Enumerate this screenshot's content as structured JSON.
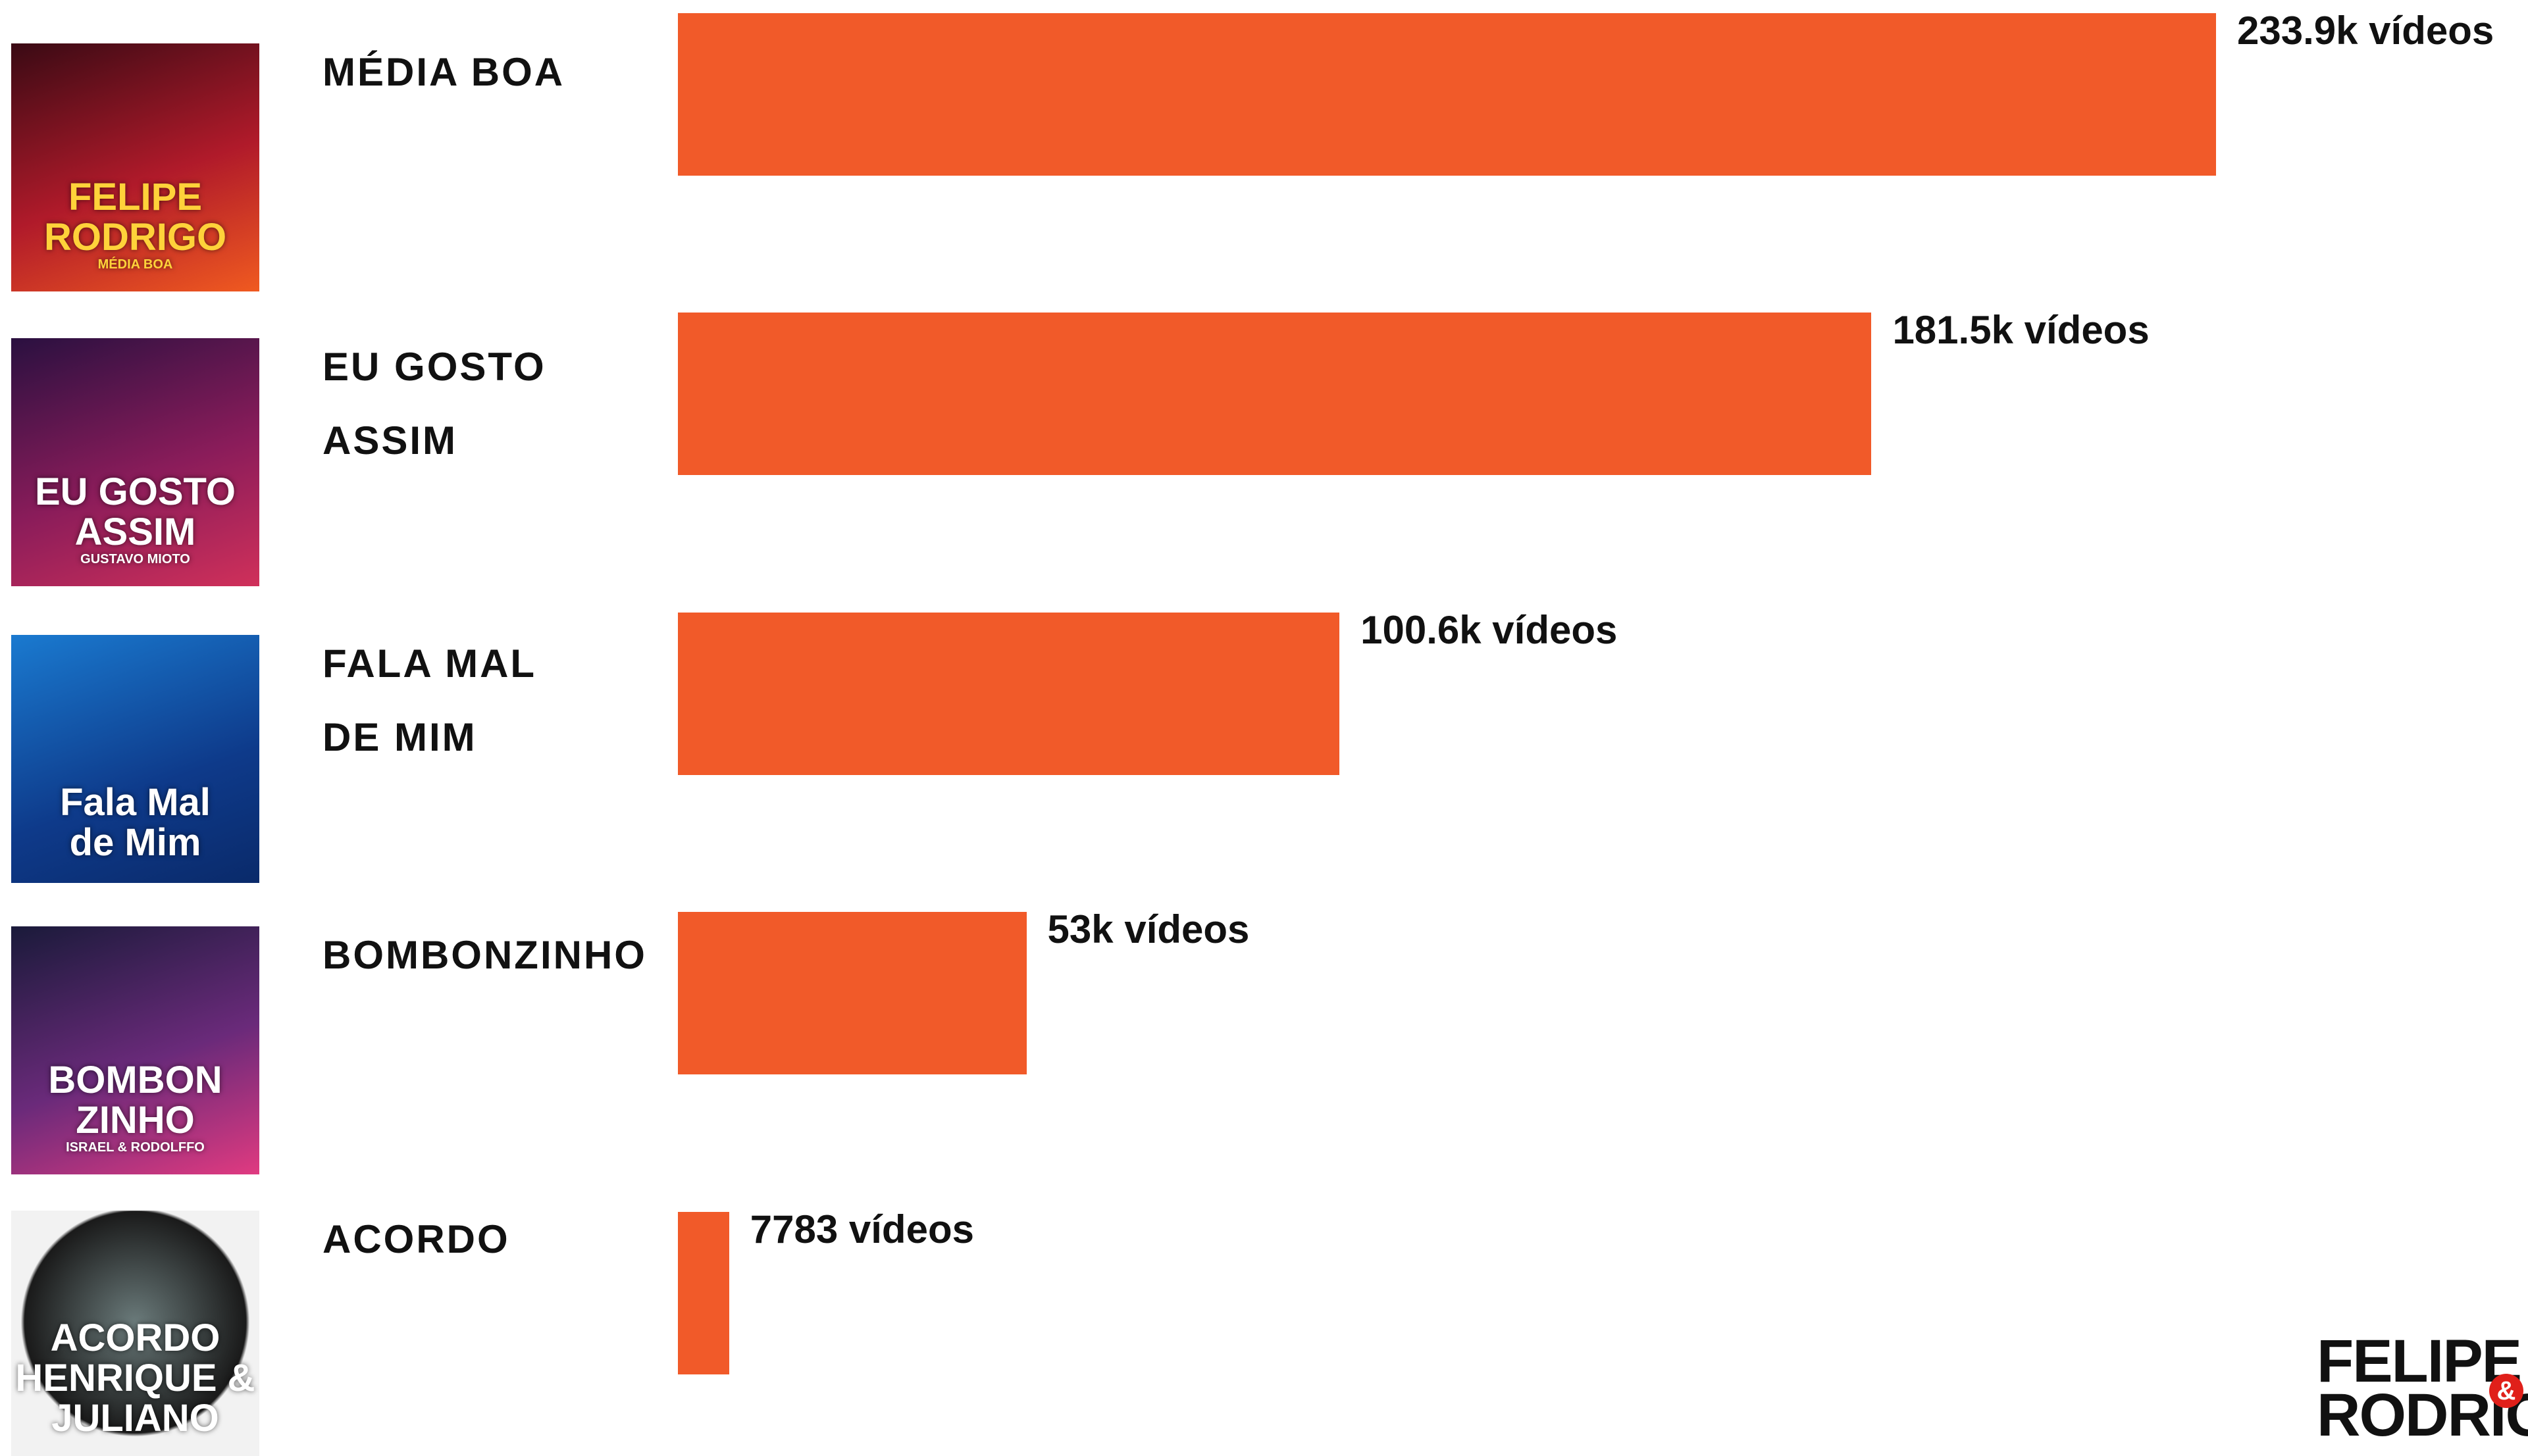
{
  "chart_data": {
    "type": "bar",
    "orientation": "horizontal",
    "categories": [
      "MÉDIA BOA",
      "EU GOSTO\nASSIM",
      "FALA MAL\nDE MIM",
      "BOMBONZINHO",
      "ACORDO"
    ],
    "values": [
      233900,
      181500,
      100600,
      53000,
      7783
    ],
    "value_labels": [
      "233.9k vídeos",
      "181.5k vídeos",
      "100.6k vídeos",
      "53k vídeos",
      "7783 vídeos"
    ],
    "color": "#f15a29"
  },
  "covers": [
    {
      "lines": [
        "FELIPE",
        "RODRIGO",
        "MÉDIA BOA"
      ],
      "bg": "linear-gradient(160deg,#3a0a14,#b01a2a 55%,#f05a20)",
      "ink": "#ffd23a"
    },
    {
      "lines": [
        "EU GOSTO",
        "ASSIM",
        "GUSTAVO MIOTO"
      ],
      "bg": "linear-gradient(160deg,#2a1040,#8a1c5a 55%,#d0305a)",
      "ink": "#ffffff"
    },
    {
      "lines": [
        "Fala Mal",
        "de Mim"
      ],
      "bg": "linear-gradient(160deg,#1a7ad0,#0e3a8a 60%,#0a2a6a)",
      "ink": "#ffffff"
    },
    {
      "lines": [
        "BOMBON",
        "ZINHO",
        "ISRAEL & RODOLFFO"
      ],
      "bg": "linear-gradient(160deg,#1a1a3a,#6a2a7a 55%,#e03a80)",
      "ink": "#ffffff"
    },
    {
      "lines": [
        "ACORDO",
        "HENRIQUE & JULIANO"
      ],
      "bg": "radial-gradient(circle at 50% 45%,#6a7a7a,#1a1a1a 60%,#f2f2f2 62%)",
      "ink": "#ffffff"
    }
  ],
  "logo": {
    "lines": [
      "FELIPE",
      "RODRIGO"
    ],
    "amp": "&"
  }
}
